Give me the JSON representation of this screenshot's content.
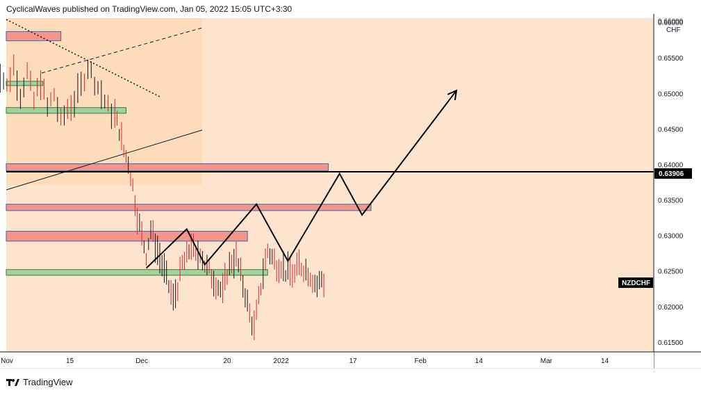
{
  "header": {
    "text": "CyclicalWaves published on TradingView.com, Jan 05, 2022 15:05 UTC+3:30"
  },
  "footer": {
    "brand": "TradingView"
  },
  "chart_data": {
    "type": "line",
    "symbol": "NZDCHF",
    "currency": "CHF",
    "last_price": "0.63906",
    "price_ticks": [
      "0.66000",
      "0.65500",
      "0.65000",
      "0.64500",
      "0.64000",
      "0.63500",
      "0.63000",
      "0.62500",
      "0.62000",
      "0.61500"
    ],
    "time_ticks": [
      "Nov",
      "15",
      "Dec",
      "20",
      "2022",
      "17",
      "Feb",
      "14",
      "Mar",
      "14"
    ],
    "ylim": [
      0.6145,
      0.6605
    ],
    "price_series": [
      [
        -3,
        0.656
      ],
      [
        -1.5,
        0.653
      ],
      [
        0,
        0.651
      ],
      [
        1.5,
        0.654
      ],
      [
        3,
        0.65
      ],
      [
        4.5,
        0.653
      ],
      [
        6,
        0.649
      ],
      [
        7.5,
        0.652
      ],
      [
        9,
        0.648
      ],
      [
        10.5,
        0.65
      ],
      [
        12,
        0.646
      ],
      [
        13.5,
        0.648
      ],
      [
        15,
        0.649
      ],
      [
        16.5,
        0.651
      ],
      [
        18,
        0.654
      ],
      [
        19.5,
        0.652
      ],
      [
        21,
        0.65
      ],
      [
        22.5,
        0.648
      ],
      [
        24,
        0.647
      ],
      [
        25,
        0.645
      ],
      [
        26,
        0.642
      ],
      [
        27,
        0.6405
      ],
      [
        28,
        0.637
      ],
      [
        29,
        0.633
      ],
      [
        30,
        0.63
      ],
      [
        31,
        0.6275
      ],
      [
        32,
        0.631
      ],
      [
        33,
        0.629
      ],
      [
        34,
        0.627
      ],
      [
        35,
        0.625
      ],
      [
        36,
        0.623
      ],
      [
        37,
        0.621
      ],
      [
        38,
        0.623
      ],
      [
        39,
        0.626
      ],
      [
        40,
        0.627
      ],
      [
        41,
        0.629
      ],
      [
        42,
        0.627
      ],
      [
        43,
        0.628
      ],
      [
        44,
        0.626
      ],
      [
        45,
        0.625
      ],
      [
        46,
        0.624
      ],
      [
        47,
        0.623
      ],
      [
        48,
        0.622
      ],
      [
        49,
        0.625
      ],
      [
        50,
        0.6265
      ],
      [
        51,
        0.627
      ],
      [
        52,
        0.6245
      ],
      [
        53,
        0.622
      ],
      [
        54,
        0.619
      ],
      [
        55,
        0.617
      ],
      [
        56,
        0.621
      ],
      [
        57,
        0.625
      ],
      [
        58,
        0.628
      ],
      [
        59,
        0.627
      ],
      [
        60,
        0.626
      ],
      [
        61,
        0.626
      ],
      [
        62,
        0.625
      ],
      [
        63,
        0.625
      ],
      [
        64,
        0.6245
      ],
      [
        65,
        0.626
      ],
      [
        66,
        0.6255
      ],
      [
        67,
        0.625
      ],
      [
        68,
        0.624
      ],
      [
        69,
        0.623
      ],
      [
        70,
        0.624
      ],
      [
        71,
        0.623
      ]
    ],
    "horizontal_line": 0.63906,
    "zones": [
      {
        "kind": "supply",
        "x1": -3.5,
        "x2": 12,
        "y1": 0.6575,
        "y2": 0.6588
      },
      {
        "kind": "demand",
        "x1": -3.5,
        "x2": 8,
        "y1": 0.6512,
        "y2": 0.6518
      },
      {
        "kind": "demand",
        "x1": -3.5,
        "x2": 26.5,
        "y1": 0.6473,
        "y2": 0.6481
      },
      {
        "kind": "supply",
        "x1": -3.5,
        "x2": 71.5,
        "y1": 0.6392,
        "y2": 0.6402
      },
      {
        "kind": "supply",
        "x1": -3.5,
        "x2": 81,
        "y1": 0.6336,
        "y2": 0.6345
      },
      {
        "kind": "supply",
        "x1": -3.5,
        "x2": 53.5,
        "y1": 0.6293,
        "y2": 0.6307
      },
      {
        "kind": "demand",
        "x1": -3.5,
        "x2": 58,
        "y1": 0.6245,
        "y2": 0.6253
      }
    ],
    "projection_path": [
      [
        31,
        0.6255
      ],
      [
        40,
        0.631
      ],
      [
        44,
        0.626
      ],
      [
        55.5,
        0.6345
      ],
      [
        62.5,
        0.6265
      ],
      [
        74,
        0.6388
      ],
      [
        79,
        0.633
      ],
      [
        100,
        0.6505
      ]
    ]
  }
}
